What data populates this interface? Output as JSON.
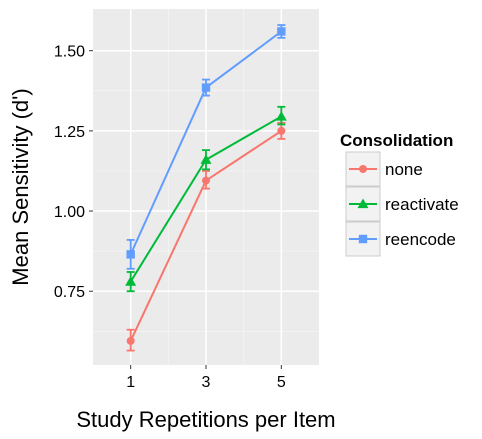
{
  "chart_data": {
    "type": "line",
    "title": "",
    "xlabel": "Study Repetitions per Item",
    "ylabel": "Mean Sensitivity (d')",
    "x": [
      1,
      3,
      5
    ],
    "x_tick_labels": [
      "1",
      "3",
      "5"
    ],
    "xlim": [
      0,
      6
    ],
    "ylim": [
      0.52,
      1.63
    ],
    "y_ticks": [
      0.75,
      1.0,
      1.25,
      1.5
    ],
    "y_tick_labels": [
      "0.75",
      "1.00",
      "1.25",
      "1.50"
    ],
    "grid": true,
    "legend": {
      "title": "Consolidation",
      "position": "right"
    },
    "series": [
      {
        "name": "none",
        "color": "#F8766D",
        "marker": "circle",
        "values": [
          0.595,
          1.095,
          1.25
        ],
        "error_low": [
          0.565,
          1.07,
          1.225
        ],
        "error_high": [
          0.63,
          1.125,
          1.275
        ]
      },
      {
        "name": "reactivate",
        "color": "#00BA38",
        "marker": "triangle",
        "values": [
          0.78,
          1.16,
          1.295
        ],
        "error_low": [
          0.75,
          1.13,
          1.27
        ],
        "error_high": [
          0.81,
          1.19,
          1.325
        ]
      },
      {
        "name": "reencode",
        "color": "#619CFF",
        "marker": "square",
        "values": [
          0.865,
          1.385,
          1.56
        ],
        "error_low": [
          0.82,
          1.36,
          1.54
        ],
        "error_high": [
          0.91,
          1.41,
          1.58
        ]
      }
    ]
  }
}
